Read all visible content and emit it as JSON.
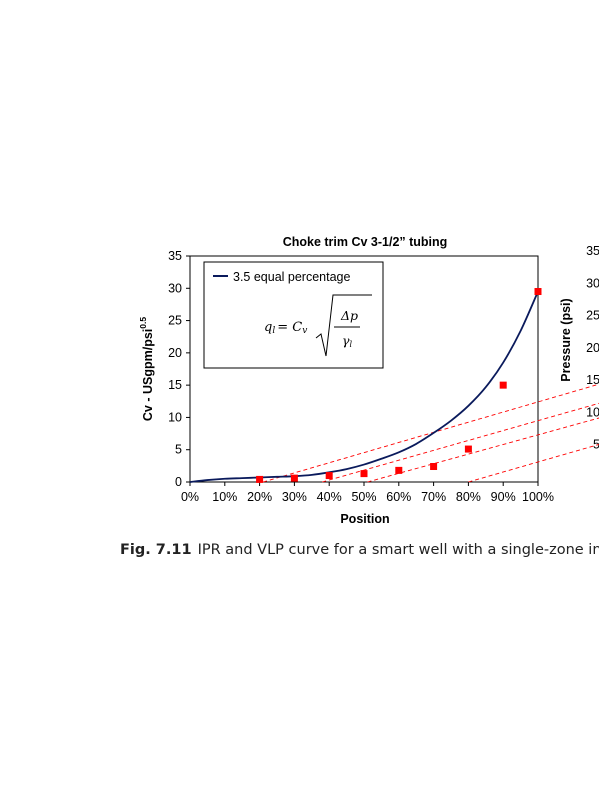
{
  "caption": {
    "label": "Fig. 7.11",
    "text": "IPR and VLP curve for a smart well with a single-zone inter"
  },
  "chart_data": {
    "type": "line",
    "title": "Choke trim Cv 3-1/2” tubing",
    "xlabel": "Position",
    "ylabel": "Cv - USgpm/psi",
    "ylabel_superscript": "0.5",
    "xlim": [
      0,
      100
    ],
    "ylim": [
      0,
      35
    ],
    "x_ticks": [
      0,
      10,
      20,
      30,
      40,
      50,
      60,
      70,
      80,
      90,
      100
    ],
    "x_tick_labels": [
      "0%",
      "10%",
      "20%",
      "30%",
      "40%",
      "50%",
      "60%",
      "70%",
      "80%",
      "90%",
      "100%"
    ],
    "y_ticks": [
      0,
      5,
      10,
      15,
      20,
      25,
      30,
      35
    ],
    "y_tick_labels": [
      "0",
      "5",
      "10",
      "15",
      "20",
      "25",
      "30",
      "35"
    ],
    "grid": false,
    "legend": {
      "placement": "top-left",
      "entries": [
        "3.5 equal percentage"
      ],
      "formula": {
        "lhs": "q",
        "lhs_sub": "l",
        "eq": "= C",
        "cv_sub": "v",
        "numerator": "Δp",
        "denominator": "γ",
        "den_sub": "l"
      }
    },
    "series": [
      {
        "name": "3.5 equal percentage",
        "style": "line",
        "color": "#0a1a5c",
        "x": [
          0,
          5,
          10,
          15,
          20,
          25,
          30,
          35,
          40,
          45,
          50,
          55,
          60,
          65,
          70,
          75,
          80,
          85,
          90,
          95,
          100
        ],
        "y": [
          0,
          0.3,
          0.5,
          0.6,
          0.7,
          0.8,
          0.9,
          1.1,
          1.5,
          2.0,
          2.7,
          3.6,
          4.6,
          5.9,
          7.6,
          9.5,
          11.8,
          14.7,
          18.5,
          23.4,
          29.5
        ]
      },
      {
        "style": "markers",
        "color": "#ff0000",
        "x": [
          20,
          30,
          40,
          50,
          60,
          70,
          80,
          90,
          100
        ],
        "y": [
          0.4,
          0.6,
          1.0,
          1.3,
          1.8,
          2.4,
          5.1,
          15.0,
          29.5
        ]
      }
    ],
    "legend_marker": {
      "color": "#ff0000",
      "x": 9,
      "y": 28.2
    },
    "right_axis": {
      "label": "Pressure (psi)",
      "ticks": [
        5,
        10,
        15,
        20,
        25,
        30,
        35
      ],
      "tick_labels": [
        "5",
        "10",
        "15",
        "20",
        "25",
        "30",
        "35"
      ]
    },
    "dashed_lines": {
      "color": "#ff0000",
      "lines": [
        {
          "x1": 21,
          "y1": 0,
          "x2": 100,
          "y2": 12.4
        },
        {
          "x1": 38,
          "y1": 0,
          "x2": 100,
          "y2": 9.5
        },
        {
          "x1": 51,
          "y1": 0,
          "x2": 100,
          "y2": 7.3
        },
        {
          "x1": 80,
          "y1": 0,
          "x2": 100,
          "y2": 3.1
        }
      ],
      "extend_to_x": 120
    }
  }
}
